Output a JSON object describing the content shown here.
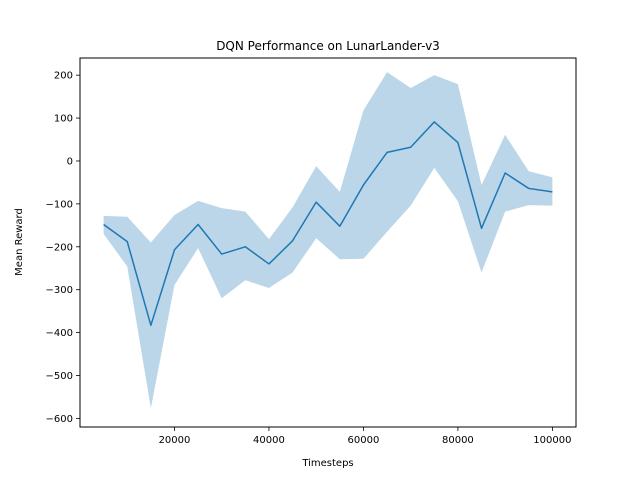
{
  "chart_data": {
    "type": "line",
    "title": "DQN Performance on LunarLander-v3",
    "xlabel": "Timesteps",
    "ylabel": "Mean Reward",
    "xlim": [
      0,
      105000
    ],
    "ylim": [
      -620,
      240
    ],
    "xticks": [
      20000,
      40000,
      60000,
      80000,
      100000
    ],
    "yticks": [
      -600,
      -500,
      -400,
      -300,
      -200,
      -100,
      0,
      100,
      200
    ],
    "grid": false,
    "legend": "none",
    "x": [
      5000,
      10000,
      15000,
      20000,
      25000,
      30000,
      35000,
      40000,
      45000,
      50000,
      55000,
      60000,
      65000,
      70000,
      75000,
      80000,
      85000,
      90000,
      95000,
      100000
    ],
    "series": [
      {
        "values": [
          -148,
          -188,
          -383,
          -207,
          -148,
          -217,
          -200,
          -240,
          -186,
          -96,
          -152,
          -56,
          20,
          32,
          91,
          43,
          -157,
          -28,
          -64,
          -72
        ],
        "upper": [
          -128,
          -130,
          -190,
          -126,
          -93,
          -110,
          -118,
          -182,
          -108,
          -12,
          -72,
          118,
          207,
          170,
          200,
          179,
          -56,
          61,
          -24,
          -38
        ],
        "lower": [
          -170,
          -246,
          -576,
          -289,
          -203,
          -320,
          -278,
          -296,
          -260,
          -180,
          -229,
          -228,
          -165,
          -104,
          -16,
          -94,
          -260,
          -118,
          -103,
          -104
        ],
        "color": "#1f77b4",
        "band_color": "#1f77b4"
      }
    ]
  }
}
